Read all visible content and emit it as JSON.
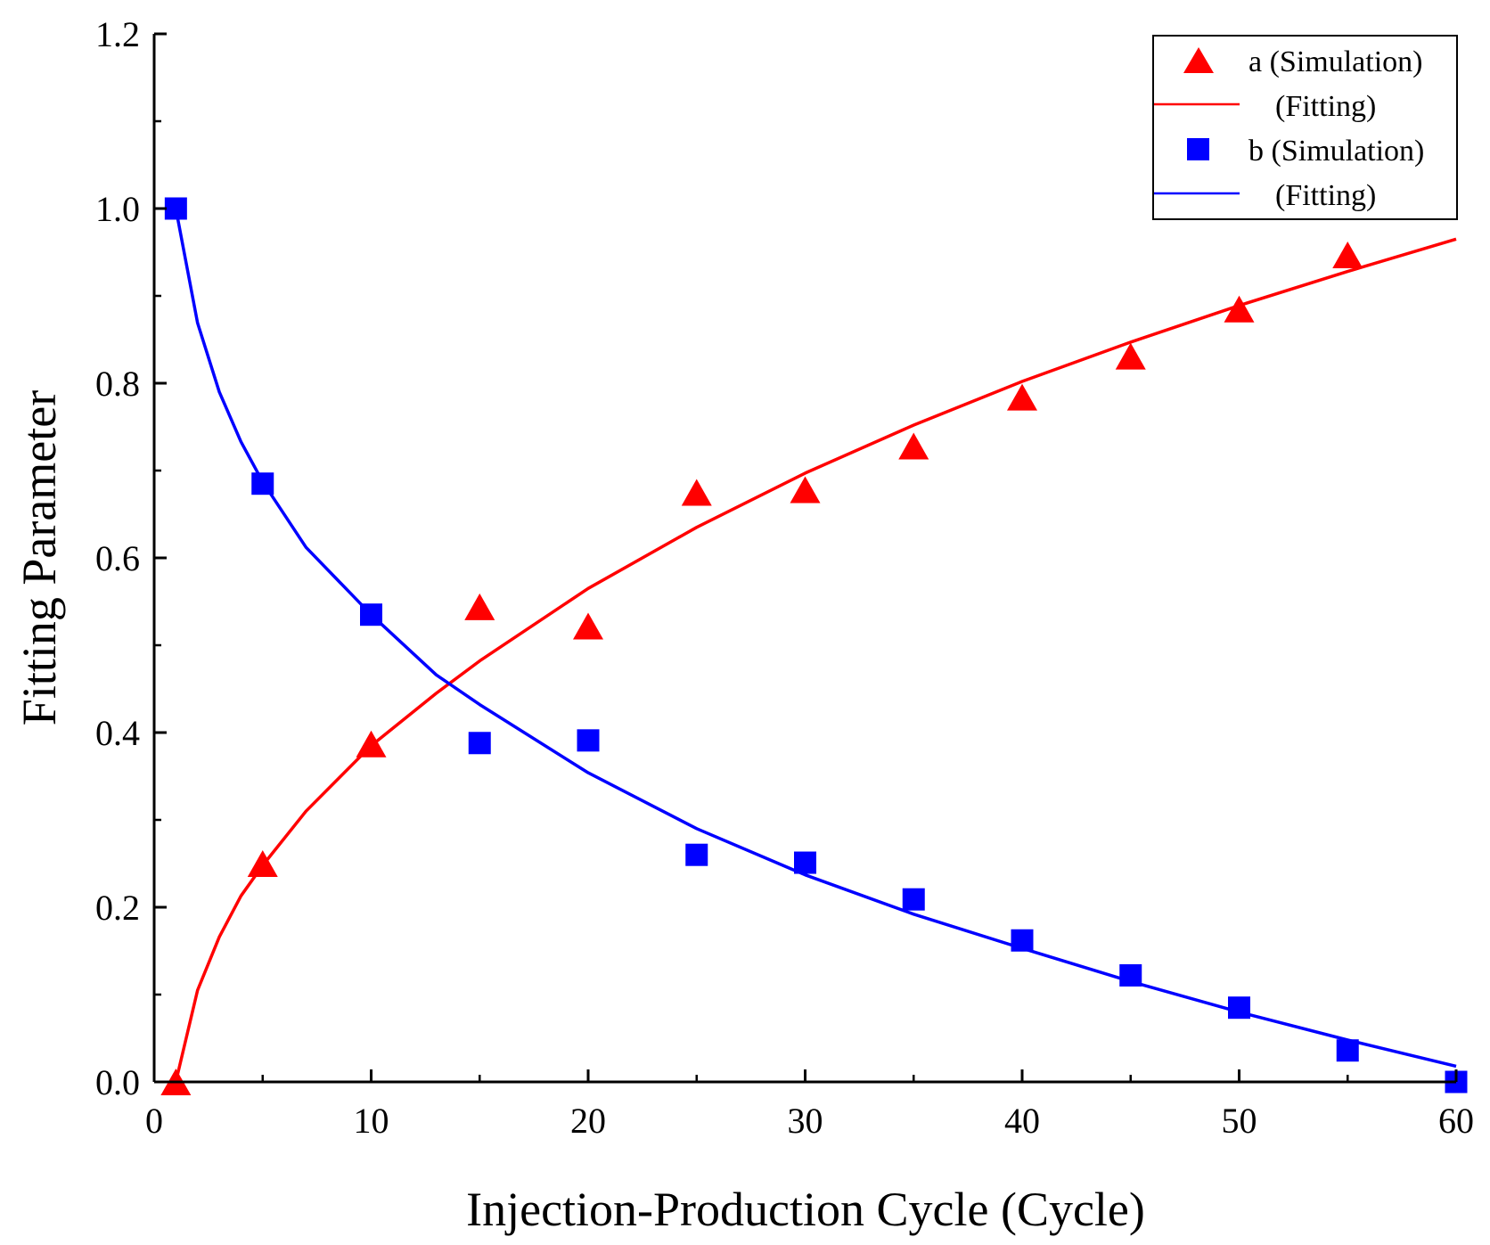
{
  "chart_data": {
    "type": "scatter",
    "xlabel": "Injection-Production Cycle (Cycle)",
    "ylabel": "Fitting Parameter",
    "xlim": [
      0,
      60
    ],
    "ylim": [
      0,
      1.2
    ],
    "xticks": [
      0,
      10,
      20,
      30,
      40,
      50,
      60
    ],
    "xtick_labels": [
      "0",
      "10",
      "20",
      "30",
      "40",
      "50",
      "60"
    ],
    "yticks": [
      0,
      0.2,
      0.4,
      0.6,
      0.8,
      1.0,
      1.2
    ],
    "ytick_labels": [
      "0.0",
      "0.2",
      "0.4",
      "0.6",
      "0.8",
      "1.0",
      "1.2"
    ],
    "legend_position": "top-right",
    "series": [
      {
        "name": "a (Simulation)",
        "kind": "scatter",
        "marker": "triangle",
        "color": "#ff0000",
        "x": [
          1,
          5,
          10,
          15,
          20,
          25,
          30,
          35,
          40,
          45,
          50,
          55
        ],
        "y": [
          0.0,
          0.25,
          0.387,
          0.544,
          0.522,
          0.675,
          0.678,
          0.728,
          0.784,
          0.831,
          0.885,
          0.947
        ]
      },
      {
        "name": "(Fitting)",
        "kind": "line",
        "color": "#ff0000",
        "x": [
          1,
          2,
          3,
          4,
          5,
          7,
          10,
          13,
          15,
          20,
          25,
          30,
          35,
          40,
          45,
          50,
          55,
          60
        ],
        "y": [
          0.0,
          0.105,
          0.166,
          0.213,
          0.248,
          0.31,
          0.385,
          0.445,
          0.482,
          0.565,
          0.635,
          0.697,
          0.752,
          0.802,
          0.847,
          0.889,
          0.928,
          0.965
        ]
      },
      {
        "name": "b (Simulation)",
        "kind": "scatter",
        "marker": "square",
        "color": "#0000ff",
        "x": [
          1,
          5,
          10,
          15,
          20,
          25,
          30,
          35,
          40,
          45,
          50,
          55,
          60
        ],
        "y": [
          1.0,
          0.685,
          0.535,
          0.388,
          0.391,
          0.26,
          0.251,
          0.209,
          0.162,
          0.122,
          0.085,
          0.036,
          0.0
        ]
      },
      {
        "name": "(Fitting)",
        "kind": "line",
        "color": "#0000ff",
        "x": [
          1,
          2,
          3,
          4,
          5,
          7,
          10,
          13,
          15,
          20,
          25,
          30,
          35,
          40,
          45,
          50,
          55,
          60
        ],
        "y": [
          1.0,
          0.869,
          0.79,
          0.733,
          0.687,
          0.612,
          0.535,
          0.466,
          0.432,
          0.354,
          0.29,
          0.237,
          0.192,
          0.153,
          0.115,
          0.08,
          0.048,
          0.018
        ]
      }
    ]
  }
}
